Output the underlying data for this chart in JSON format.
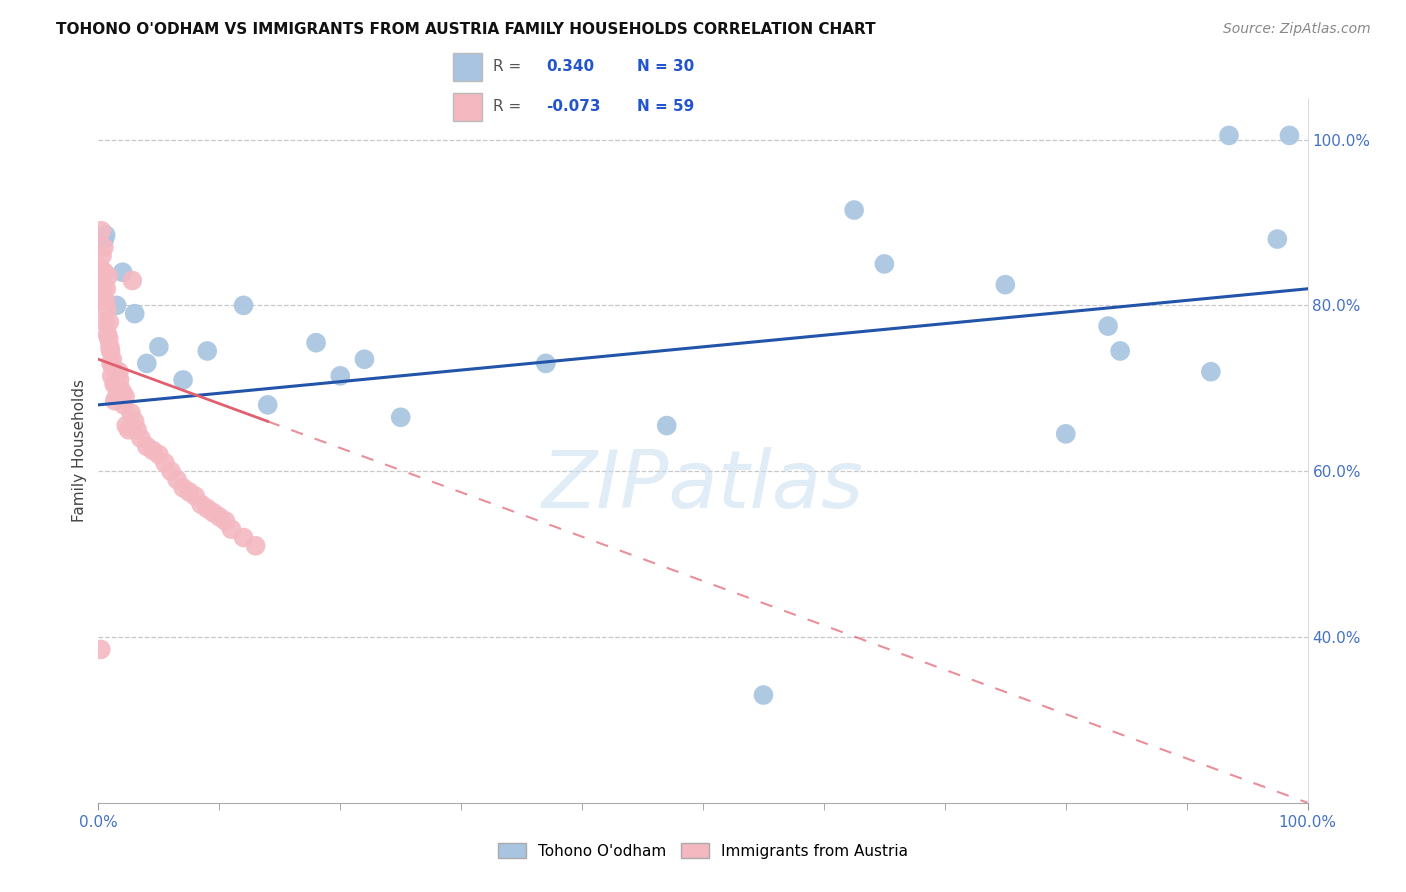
{
  "title": "TOHONO O'ODHAM VS IMMIGRANTS FROM AUSTRIA FAMILY HOUSEHOLDS CORRELATION CHART",
  "source": "Source: ZipAtlas.com",
  "ylabel": "Family Households",
  "watermark": "ZIPatlas",
  "legend_blue_label": "Tohono O'odham",
  "legend_pink_label": "Immigrants from Austria",
  "blue_color": "#a8c4e0",
  "pink_color": "#f4b8c1",
  "blue_line_color": "#2255aa",
  "pink_line_color": "#e06070",
  "blue_scatter": [
    [
      0.5,
      88.0
    ],
    [
      0.6,
      88.5
    ],
    [
      1.5,
      80.0
    ],
    [
      2.0,
      84.0
    ],
    [
      3.0,
      79.0
    ],
    [
      4.0,
      73.0
    ],
    [
      5.0,
      75.0
    ],
    [
      7.0,
      71.0
    ],
    [
      9.0,
      74.5
    ],
    [
      12.0,
      80.0
    ],
    [
      14.0,
      68.0
    ],
    [
      18.0,
      75.5
    ],
    [
      20.0,
      71.5
    ],
    [
      22.0,
      73.5
    ],
    [
      25.0,
      66.5
    ],
    [
      37.0,
      73.0
    ],
    [
      47.0,
      65.5
    ],
    [
      55.0,
      33.0
    ],
    [
      62.5,
      91.5
    ],
    [
      65.0,
      85.0
    ],
    [
      75.0,
      82.5
    ],
    [
      80.0,
      64.5
    ],
    [
      83.5,
      77.5
    ],
    [
      84.5,
      74.5
    ],
    [
      92.0,
      72.0
    ],
    [
      93.5,
      100.5
    ],
    [
      97.5,
      88.0
    ],
    [
      98.5,
      100.5
    ]
  ],
  "pink_scatter": [
    [
      0.15,
      84.5
    ],
    [
      0.2,
      82.0
    ],
    [
      0.25,
      89.0
    ],
    [
      0.3,
      86.0
    ],
    [
      0.35,
      80.5
    ],
    [
      0.4,
      82.0
    ],
    [
      0.45,
      87.0
    ],
    [
      0.5,
      84.0
    ],
    [
      0.55,
      78.0
    ],
    [
      0.6,
      80.5
    ],
    [
      0.65,
      82.0
    ],
    [
      0.7,
      79.5
    ],
    [
      0.75,
      76.5
    ],
    [
      0.8,
      83.5
    ],
    [
      0.85,
      76.0
    ],
    [
      0.9,
      78.0
    ],
    [
      0.95,
      75.0
    ],
    [
      1.0,
      74.5
    ],
    [
      1.05,
      73.0
    ],
    [
      1.1,
      71.5
    ],
    [
      1.15,
      73.5
    ],
    [
      1.2,
      72.5
    ],
    [
      1.3,
      70.5
    ],
    [
      1.35,
      68.5
    ],
    [
      1.4,
      70.5
    ],
    [
      1.5,
      69.0
    ],
    [
      1.6,
      69.0
    ],
    [
      1.7,
      72.0
    ],
    [
      1.75,
      71.0
    ],
    [
      1.8,
      70.0
    ],
    [
      1.9,
      69.0
    ],
    [
      2.0,
      69.5
    ],
    [
      2.1,
      68.0
    ],
    [
      2.2,
      69.0
    ],
    [
      2.3,
      65.5
    ],
    [
      2.5,
      65.0
    ],
    [
      2.7,
      67.0
    ],
    [
      3.0,
      66.0
    ],
    [
      3.2,
      65.0
    ],
    [
      3.5,
      64.0
    ],
    [
      4.0,
      63.0
    ],
    [
      4.5,
      62.5
    ],
    [
      5.0,
      62.0
    ],
    [
      5.5,
      61.0
    ],
    [
      6.0,
      60.0
    ],
    [
      6.5,
      59.0
    ],
    [
      7.0,
      58.0
    ],
    [
      7.5,
      57.5
    ],
    [
      8.0,
      57.0
    ],
    [
      8.5,
      56.0
    ],
    [
      9.0,
      55.5
    ],
    [
      9.5,
      55.0
    ],
    [
      10.0,
      54.5
    ],
    [
      10.5,
      54.0
    ],
    [
      11.0,
      53.0
    ],
    [
      12.0,
      52.0
    ],
    [
      13.0,
      51.0
    ],
    [
      0.2,
      38.5
    ],
    [
      2.8,
      83.0
    ]
  ],
  "xlim": [
    0,
    100
  ],
  "ylim": [
    20,
    105
  ],
  "yticks": [
    40,
    60,
    80,
    100
  ],
  "ytick_labels": [
    "40.0%",
    "60.0%",
    "80.0%",
    "100.0%"
  ],
  "xticks": [
    0,
    100
  ],
  "xtick_labels": [
    "0.0%",
    "100.0%"
  ],
  "grid_color": "#c8c8c8",
  "background_color": "#ffffff",
  "title_fontsize": 11,
  "axis_label_fontsize": 11,
  "tick_fontsize": 11,
  "source_fontsize": 10
}
